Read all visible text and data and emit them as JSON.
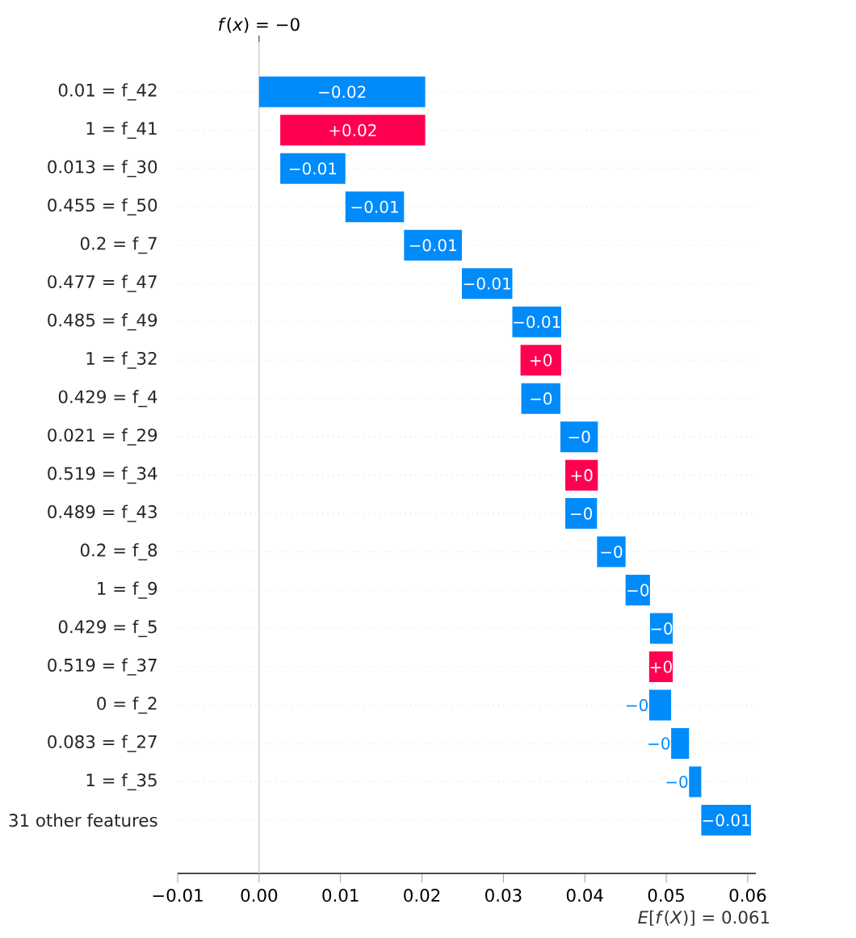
{
  "chart_data": {
    "type": "bar",
    "orientation": "horizontal",
    "categories": [
      "0.01 = f_42",
      "1 = f_41",
      "0.013 = f_30",
      "0.455 = f_50",
      "0.2 = f_7",
      "0.477 = f_47",
      "0.485 = f_49",
      "1 = f_32",
      "0.429 = f_4",
      "0.021 = f_29",
      "0.519 = f_34",
      "0.489 = f_43",
      "0.2 = f_8",
      "1 = f_9",
      "0.429 = f_5",
      "0.519 = f_37",
      "0 = f_2",
      "0.083 = f_27",
      "1 = f_35",
      "31 other features"
    ],
    "values": [
      -0.0204,
      0.0178,
      -0.008,
      -0.0072,
      -0.0071,
      -0.0062,
      -0.006,
      0.005,
      -0.0048,
      -0.0046,
      0.004,
      -0.0039,
      -0.0035,
      -0.003,
      -0.0028,
      0.0029,
      -0.0027,
      -0.0022,
      -0.0015,
      -0.0061
    ],
    "base": [
      0.0204,
      0.0026,
      0.0106,
      0.0178,
      0.0249,
      0.0311,
      0.0371,
      0.0321,
      0.037,
      0.0416,
      0.0376,
      0.0415,
      0.045,
      0.048,
      0.0508,
      0.0479,
      0.0506,
      0.0528,
      0.0543,
      0.0604
    ],
    "colors": [
      "#008bfb",
      "#ff0051",
      "#008bfb",
      "#008bfb",
      "#008bfb",
      "#008bfb",
      "#008bfb",
      "#ff0051",
      "#008bfb",
      "#008bfb",
      "#ff0051",
      "#008bfb",
      "#008bfb",
      "#008bfb",
      "#008bfb",
      "#ff0051",
      "#008bfb",
      "#008bfb",
      "#008bfb",
      "#008bfb"
    ],
    "value_labels": [
      "−0.02",
      "+0.02",
      "−0.01",
      "−0.01",
      "−0.01",
      "−0.01",
      "−0.01",
      "+0",
      "−0",
      "−0",
      "+0",
      "−0",
      "−0",
      "−0",
      "−0",
      "+0",
      "−0",
      "−0",
      "−0",
      "−0.01"
    ],
    "xlim": [
      -0.01,
      0.061
    ],
    "xticks": [
      {
        "value": -0.01,
        "label": "−0.01"
      },
      {
        "value": 0,
        "label": "0.00"
      },
      {
        "value": 0.01,
        "label": "0.01"
      },
      {
        "value": 0.02,
        "label": "0.02"
      },
      {
        "value": 0.03,
        "label": "0.03"
      },
      {
        "value": 0.04,
        "label": "0.04"
      },
      {
        "value": 0.05,
        "label": "0.05"
      },
      {
        "value": 0.06,
        "label": "0.06"
      }
    ],
    "grid": "y",
    "ref_lines": [
      {
        "axis": "x",
        "value": 0,
        "label": "*f*(*x*) = −0",
        "color": "#cccccc"
      }
    ],
    "annotations": [
      "*E*[*f*(*X*)] = 0.061"
    ]
  }
}
